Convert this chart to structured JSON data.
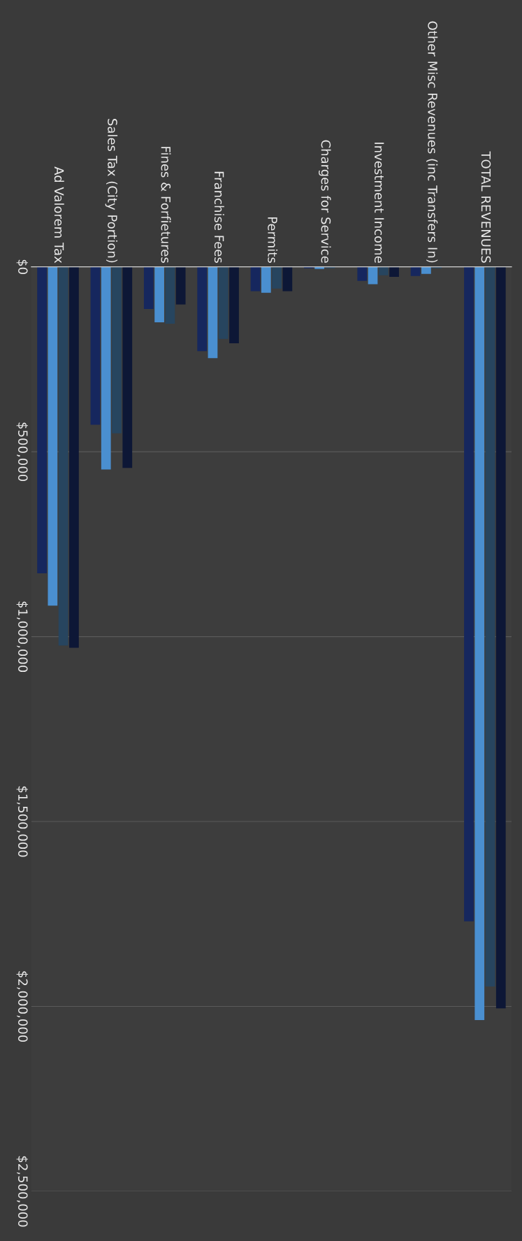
{
  "chart_data": {
    "type": "bar",
    "categories": [
      "Ad Valorem Tax",
      "Sales Tax (City Portion)",
      "Fines & Forfietures",
      "Franchise Fees",
      "Permits",
      "Charges for Service",
      "Investment Income",
      "Other Misc Revenues (inc Transfers In)",
      "TOTAL REVENUES"
    ],
    "series": [
      {
        "color": "#16275e",
        "values": [
          829000,
          427000,
          114000,
          228000,
          66000,
          4000,
          38000,
          25000,
          1770000
        ]
      },
      {
        "color": "#4a8fd0",
        "values": [
          916000,
          548000,
          150000,
          247000,
          70000,
          6000,
          47000,
          19000,
          2037000
        ]
      },
      {
        "color": "#27455f",
        "values": [
          1024000,
          450000,
          154000,
          195000,
          59000,
          4000,
          23000,
          4000,
          1946000
        ]
      },
      {
        "color": "#0d1736",
        "values": [
          1030000,
          544000,
          102000,
          207000,
          66000,
          null,
          27000,
          null,
          2005000
        ]
      }
    ],
    "ylim": [
      2500000,
      0
    ],
    "yticks": [
      {
        "value": 0,
        "label": "$0"
      },
      {
        "value": 500000,
        "label": "$500,000"
      },
      {
        "value": 1000000,
        "label": "$1,000,000"
      },
      {
        "value": 1500000,
        "label": "$1,500,000"
      },
      {
        "value": 2000000,
        "label": "$2,000,000"
      },
      {
        "value": 2500000,
        "label": "$2,500,000"
      }
    ],
    "grid": "y"
  }
}
